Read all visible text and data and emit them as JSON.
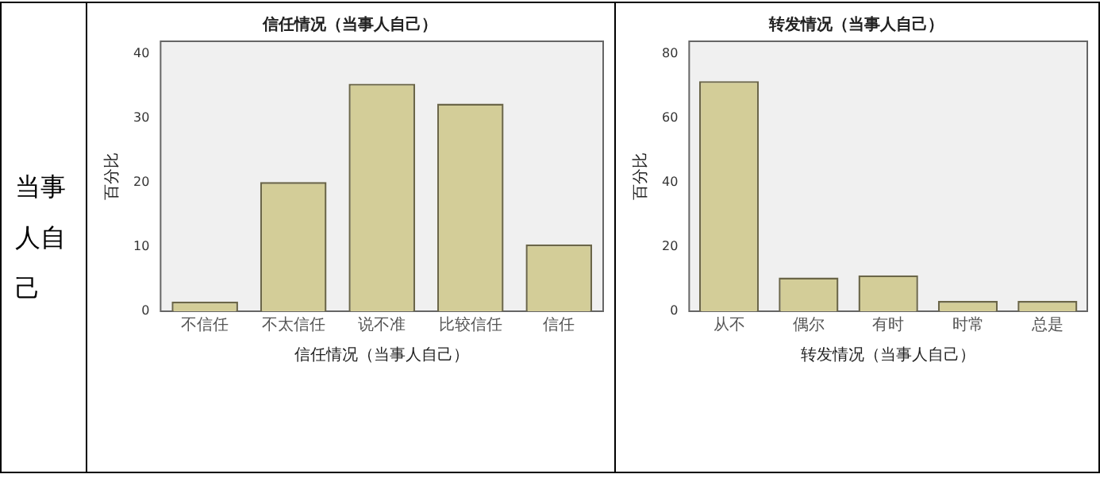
{
  "chart_data": [
    {
      "type": "other",
      "annotations": [
        "当事人自己"
      ]
    },
    {
      "type": "bar",
      "title": "信任情况（当事人自己）",
      "xlabel": "信任情况（当事人自己）",
      "ylabel": "百分比",
      "categories": [
        "不信任",
        "不太信任",
        "说不准",
        "比较信任",
        "信任"
      ],
      "values": [
        1.5,
        20.1,
        35.4,
        32.3,
        10.4
      ],
      "color": "#d3cd98",
      "ylim": [
        0,
        42
      ],
      "yticks": [
        0,
        10,
        20,
        30,
        40
      ]
    },
    {
      "type": "bar",
      "title": "转发情况（当事人自己）",
      "xlabel": "转发情况（当事人自己）",
      "ylabel": "百分比",
      "categories": [
        "从不",
        "偶尔",
        "有时",
        "时常",
        "总是"
      ],
      "values": [
        71.6,
        10.5,
        11.2,
        3.2,
        3.2
      ],
      "color": "#d3cd98",
      "ylim": [
        0,
        84
      ],
      "yticks": [
        0,
        20,
        40,
        60,
        80
      ]
    }
  ]
}
